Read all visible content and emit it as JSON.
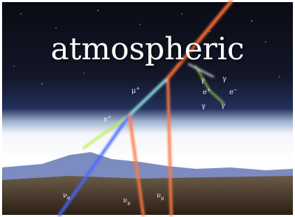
{
  "title": "atmospheric",
  "labels": [
    {
      "base": "μ",
      "sup": "+"
    },
    {
      "base": "e",
      "sup": "+"
    },
    {
      "base": "ν",
      "sub": "e"
    },
    {
      "base": "ν",
      "sub": "μ"
    },
    {
      "base": "ν",
      "sub": "μ"
    },
    {
      "base": "γ"
    },
    {
      "base": "γ"
    },
    {
      "base": "e",
      "sup": "+"
    },
    {
      "base": "e",
      "sup": "−"
    },
    {
      "base": "γ"
    },
    {
      "base": "γ"
    }
  ]
}
